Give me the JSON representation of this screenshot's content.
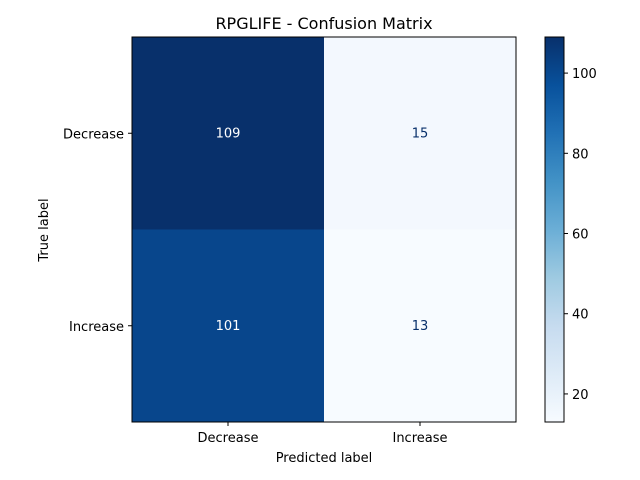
{
  "chart_data": {
    "type": "heatmap",
    "title": "RPGLIFE - Confusion Matrix",
    "xlabel": "Predicted label",
    "ylabel": "True label",
    "x_categories": [
      "Decrease",
      "Increase"
    ],
    "y_categories": [
      "Decrease",
      "Increase"
    ],
    "values": [
      [
        109,
        15
      ],
      [
        101,
        13
      ]
    ],
    "colormap": "Blues",
    "colorbar": {
      "min": 13,
      "max": 109,
      "ticks": [
        20,
        40,
        60,
        80,
        100
      ]
    },
    "cell_text_colors": {
      "dark_background": "#ffffff",
      "light_background": "#08306b"
    },
    "grid": false
  }
}
